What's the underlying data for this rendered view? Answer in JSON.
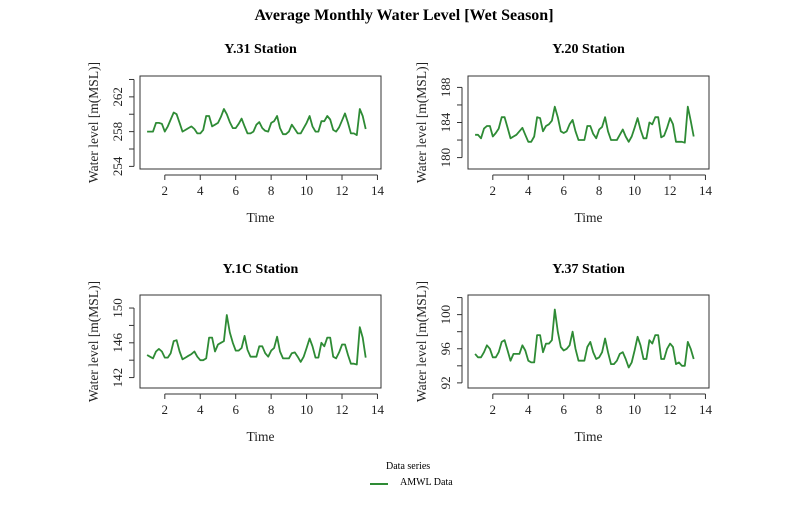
{
  "title": "Average Monthly Water Level [Wet Season]",
  "legend": {
    "title": "Data series",
    "entries": [
      {
        "label": "AMWL Data",
        "color": "#2e8b35"
      }
    ],
    "placement": "bottom-center"
  },
  "chart_data": [
    {
      "type": "line",
      "title": "Y.31 Station",
      "xlabel": "Time",
      "ylabel": "Water level [m(MSL)]",
      "xlim": [
        0.6,
        14.2
      ],
      "ylim": [
        253.7,
        264.4
      ],
      "xticks": [
        2,
        4,
        6,
        8,
        10,
        12,
        14
      ],
      "yticks": [
        254,
        256,
        258,
        260,
        262,
        264
      ],
      "ytick_labels": [
        "254",
        "",
        "258",
        "",
        "262",
        ""
      ],
      "series": [
        {
          "name": "AMWL Data",
          "color": "#2e8b35",
          "x_start": 1.0,
          "x_step": 0.1667,
          "values": [
            258.0,
            258.0,
            258.0,
            259.0,
            259.0,
            258.9,
            258.0,
            258.6,
            259.4,
            260.2,
            260.0,
            259.0,
            258.0,
            258.2,
            258.4,
            258.6,
            258.3,
            257.8,
            257.8,
            258.2,
            259.8,
            259.8,
            258.6,
            258.8,
            259.0,
            259.7,
            260.6,
            260.0,
            259.1,
            258.4,
            258.4,
            258.9,
            259.5,
            258.6,
            257.8,
            257.8,
            258.0,
            258.8,
            259.1,
            258.4,
            258.1,
            258.0,
            259.0,
            259.2,
            259.8,
            258.4,
            257.7,
            257.7,
            258.0,
            258.8,
            258.3,
            257.8,
            257.8,
            258.4,
            259.0,
            259.8,
            258.6,
            258.0,
            258.0,
            259.2,
            259.2,
            259.8,
            259.4,
            258.2,
            258.0,
            258.5,
            259.3,
            260.1,
            259.0,
            257.8,
            257.8,
            257.6,
            260.6,
            259.8,
            258.3
          ]
        }
      ]
    },
    {
      "type": "line",
      "title": "Y.20 Station",
      "xlabel": "Time",
      "ylabel": "Water level [m(MSL)]",
      "xlim": [
        0.6,
        14.2
      ],
      "ylim": [
        178.7,
        189.3
      ],
      "xticks": [
        2,
        4,
        6,
        8,
        10,
        12,
        14
      ],
      "yticks": [
        180,
        182,
        184,
        186,
        188
      ],
      "ytick_labels": [
        "180",
        "",
        "184",
        "",
        "188"
      ],
      "series": [
        {
          "name": "AMWL Data",
          "color": "#2e8b35",
          "x_start": 1.0,
          "x_step": 0.1667,
          "values": [
            182.6,
            182.6,
            182.2,
            183.3,
            183.6,
            183.6,
            182.4,
            182.8,
            183.3,
            184.6,
            184.6,
            183.4,
            182.2,
            182.4,
            182.6,
            183.0,
            183.4,
            182.6,
            181.8,
            181.8,
            182.4,
            184.6,
            184.5,
            183.0,
            183.6,
            183.8,
            184.2,
            185.8,
            184.6,
            183.0,
            182.8,
            183.0,
            183.8,
            184.3,
            183.0,
            182.0,
            182.0,
            182.0,
            183.6,
            183.6,
            182.7,
            182.2,
            183.2,
            183.5,
            184.6,
            183.0,
            182.0,
            182.0,
            182.0,
            182.6,
            183.2,
            182.4,
            181.8,
            182.4,
            183.4,
            184.5,
            183.2,
            182.2,
            182.2,
            184.0,
            183.8,
            184.6,
            184.6,
            182.3,
            182.5,
            183.4,
            184.5,
            183.8,
            181.8,
            181.8,
            181.8,
            181.7,
            185.8,
            184.2,
            182.4
          ]
        }
      ]
    },
    {
      "type": "line",
      "title": "Y.1C Station",
      "xlabel": "Time",
      "ylabel": "Water level [m(MSL)]",
      "xlim": [
        0.6,
        14.2
      ],
      "ylim": [
        140.8,
        151.5
      ],
      "xticks": [
        2,
        4,
        6,
        8,
        10,
        12,
        14
      ],
      "yticks": [
        142,
        144,
        146,
        148,
        150
      ],
      "ytick_labels": [
        "142",
        "",
        "146",
        "",
        "150"
      ],
      "series": [
        {
          "name": "AMWL Data",
          "color": "#2e8b35",
          "x_start": 1.0,
          "x_step": 0.1667,
          "values": [
            144.6,
            144.4,
            144.2,
            145.0,
            145.3,
            145.0,
            144.3,
            144.3,
            144.8,
            146.2,
            146.3,
            145.0,
            144.1,
            144.3,
            144.5,
            144.7,
            145.0,
            144.4,
            144.0,
            144.0,
            144.2,
            146.6,
            146.6,
            145.0,
            145.8,
            146.0,
            146.2,
            149.2,
            147.2,
            146.0,
            145.1,
            145.1,
            145.4,
            146.8,
            145.2,
            144.4,
            144.4,
            144.4,
            145.6,
            145.6,
            144.8,
            144.4,
            145.1,
            145.4,
            146.7,
            145.0,
            144.2,
            144.2,
            144.2,
            144.8,
            144.9,
            144.4,
            143.8,
            144.4,
            145.4,
            146.5,
            145.6,
            144.3,
            144.3,
            146.0,
            145.6,
            146.6,
            146.6,
            144.4,
            144.2,
            144.9,
            145.8,
            145.8,
            144.6,
            143.6,
            143.6,
            143.5,
            147.8,
            146.6,
            144.3
          ]
        }
      ]
    },
    {
      "type": "line",
      "title": "Y.37 Station",
      "xlabel": "Time",
      "ylabel": "Water level [m(MSL)]",
      "xlim": [
        0.6,
        14.2
      ],
      "ylim": [
        91.4,
        102.3
      ],
      "xticks": [
        2,
        4,
        6,
        8,
        10,
        12,
        14
      ],
      "yticks": [
        92,
        94,
        96,
        98,
        100,
        102
      ],
      "ytick_labels": [
        "92",
        "",
        "96",
        "",
        "100",
        ""
      ],
      "series": [
        {
          "name": "AMWL Data",
          "color": "#2e8b35",
          "x_start": 1.0,
          "x_step": 0.1667,
          "values": [
            95.4,
            95.0,
            95.0,
            95.6,
            96.4,
            96.0,
            95.0,
            95.0,
            95.6,
            96.8,
            97.0,
            95.8,
            94.6,
            95.4,
            95.4,
            95.4,
            96.4,
            95.8,
            94.6,
            94.4,
            94.4,
            97.6,
            97.6,
            95.6,
            96.6,
            96.6,
            97.0,
            100.6,
            98.0,
            96.2,
            95.8,
            96.0,
            96.4,
            98.0,
            96.0,
            94.6,
            94.6,
            94.6,
            96.2,
            96.8,
            95.6,
            94.8,
            95.0,
            95.6,
            97.2,
            95.6,
            94.2,
            94.2,
            94.6,
            95.4,
            95.6,
            94.8,
            93.8,
            94.4,
            95.8,
            97.4,
            96.4,
            94.8,
            94.8,
            97.0,
            96.6,
            97.6,
            97.6,
            94.8,
            94.8,
            96.0,
            96.6,
            96.2,
            94.2,
            94.4,
            94.0,
            94.0,
            96.8,
            96.0,
            94.8
          ]
        }
      ]
    }
  ]
}
